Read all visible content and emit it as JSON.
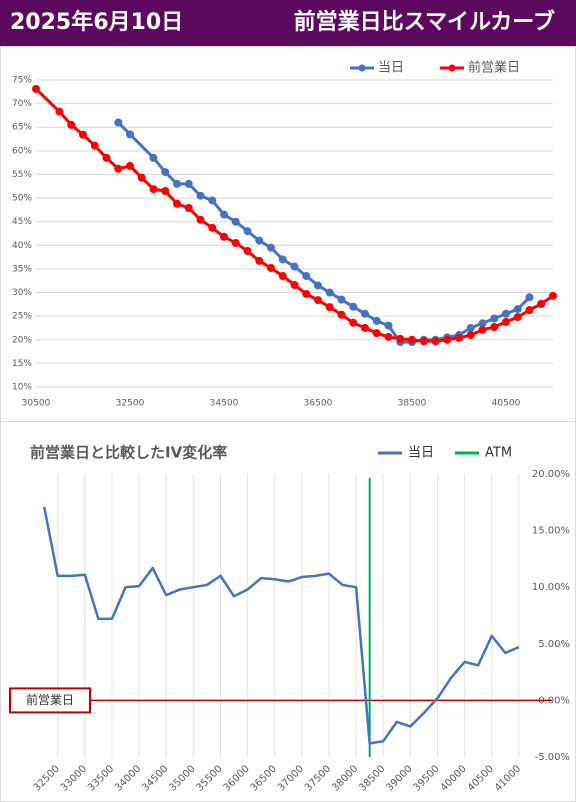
{
  "header": {
    "date": "2025年6月10日",
    "title": "前営業日比スマイルカーブ"
  },
  "chart_data": [
    {
      "type": "smile",
      "xlim": [
        30500,
        41500
      ],
      "xticks": [
        30500,
        32500,
        34500,
        36500,
        38500,
        40500
      ],
      "ylim": [
        10,
        75
      ],
      "yticks": [
        {
          "value": 10,
          "label": "10%"
        },
        {
          "value": 15,
          "label": "15%"
        },
        {
          "value": 20,
          "label": "20%"
        },
        {
          "value": 25,
          "label": "25%"
        },
        {
          "value": 30,
          "label": "30%"
        },
        {
          "value": 35,
          "label": "35%"
        },
        {
          "value": 40,
          "label": "40%"
        },
        {
          "value": 45,
          "label": "45%"
        },
        {
          "value": 50,
          "label": "50%"
        },
        {
          "value": 55,
          "label": "55%"
        },
        {
          "value": 60,
          "label": "60%"
        },
        {
          "value": 65,
          "label": "65%"
        },
        {
          "value": 70,
          "label": "70%"
        },
        {
          "value": 75,
          "label": "75%"
        }
      ],
      "grid": true,
      "legend": "top-right",
      "series": [
        {
          "name": "当日",
          "color": "#4472c4",
          "x": [
            32250,
            32500,
            33000,
            33250,
            33500,
            33750,
            34000,
            34250,
            34500,
            34750,
            35000,
            35250,
            35500,
            35750,
            36000,
            36250,
            36500,
            36750,
            37000,
            37250,
            37500,
            37750,
            38000,
            38250,
            38500,
            38750,
            39000,
            39250,
            39500,
            39750,
            40000,
            40250,
            40500,
            40750,
            41000
          ],
          "values": [
            66,
            63.5,
            58.5,
            55.5,
            53,
            53,
            50.5,
            49.5,
            46.5,
            45,
            43,
            41,
            39.5,
            37,
            35.5,
            33.5,
            31.5,
            30,
            28.5,
            27,
            25.5,
            24,
            23,
            19.5,
            19.5,
            20,
            20,
            20.5,
            21,
            22.5,
            23.5,
            24.5,
            25.5,
            26.5,
            29
          ]
        },
        {
          "name": "前営業日",
          "color": "#ff0000",
          "x": [
            30500,
            31000,
            31250,
            31500,
            31750,
            32000,
            32250,
            32500,
            32750,
            33000,
            33250,
            33500,
            33750,
            34000,
            34250,
            34500,
            34750,
            35000,
            35250,
            35500,
            35750,
            36000,
            36250,
            36500,
            36750,
            37000,
            37250,
            37500,
            37750,
            38000,
            38250,
            38500,
            38750,
            39000,
            39250,
            39500,
            39750,
            40000,
            40250,
            40500,
            40750,
            41000,
            41250,
            41500
          ],
          "values": [
            73.1,
            68.3,
            65.5,
            63.4,
            61.1,
            58.5,
            56.2,
            56.8,
            54.3,
            51.9,
            51.5,
            48.8,
            47.9,
            45.4,
            43.7,
            41.8,
            40.5,
            38.8,
            36.7,
            35.2,
            33.5,
            31.6,
            29.7,
            28.4,
            26.9,
            25.3,
            23.6,
            22.5,
            21.4,
            20.6,
            20.2,
            20.0,
            19.7,
            19.7,
            20.0,
            20.4,
            21.0,
            22.1,
            22.7,
            23.8,
            24.8,
            26.3,
            27.6,
            29.3
          ]
        }
      ]
    },
    {
      "type": "change",
      "title": "前営業日と比較したIV変化率",
      "x": [
        32250,
        32500,
        32750,
        33000,
        33250,
        33500,
        33750,
        34000,
        34250,
        34500,
        34750,
        35000,
        35250,
        35500,
        35750,
        36000,
        36250,
        36500,
        36750,
        37000,
        37250,
        37500,
        37750,
        38000,
        38250,
        38500,
        38750,
        39000,
        39250,
        39500,
        39750,
        40000,
        40250,
        40500,
        40750,
        41000
      ],
      "xlim": [
        32100,
        41150
      ],
      "xticks": [
        32500,
        33000,
        33500,
        34000,
        34500,
        35000,
        35500,
        36000,
        36500,
        37000,
        37500,
        38000,
        38500,
        39000,
        39500,
        40000,
        40500,
        41000
      ],
      "y2lim": [
        -5,
        20
      ],
      "y2ticks": [
        {
          "value": -5,
          "label": "-5.00%"
        },
        {
          "value": 0,
          "label": "0.00%"
        },
        {
          "value": 5,
          "label": "5.00%"
        },
        {
          "value": 10,
          "label": "10.00%"
        },
        {
          "value": 15,
          "label": "15.00%"
        },
        {
          "value": 20,
          "label": "20.00%"
        }
      ],
      "grid": true,
      "legend": "top-right",
      "series": [
        {
          "name": "当日",
          "color": "#4472c4",
          "axis": "y2",
          "values": [
            17.1,
            11.0,
            11.0,
            11.1,
            7.2,
            7.2,
            10.0,
            10.1,
            11.7,
            9.3,
            9.8,
            10.0,
            10.2,
            11.0,
            9.2,
            9.8,
            10.8,
            10.7,
            10.5,
            10.9,
            11.0,
            11.2,
            10.2,
            10.0,
            -3.8,
            -3.6,
            -1.9,
            -2.3,
            -1.1,
            0.2,
            2.0,
            3.4,
            3.1,
            5.7,
            4.2,
            4.7
          ]
        }
      ],
      "atm": {
        "name": "ATM",
        "color": "#00b050",
        "x": 38250
      },
      "reference": {
        "label": "前営業日",
        "color": "#c00000",
        "value": 0
      }
    }
  ]
}
